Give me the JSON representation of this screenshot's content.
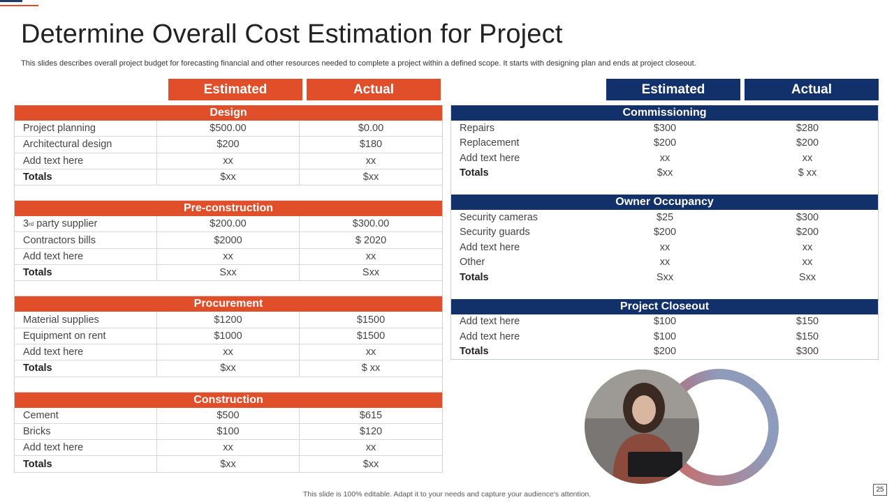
{
  "title": "Determine Overall Cost Estimation for Project",
  "subtitle": "This slides describes overall project budget for forecasting financial and other resources needed to complete a project within a defined scope. It starts with designing plan and ends at project closeout.",
  "left_headers": {
    "estimated": "Estimated",
    "actual": "Actual"
  },
  "right_headers": {
    "estimated": "Estimated",
    "actual": "Actual"
  },
  "left_sections": [
    {
      "title": "Design",
      "rows": [
        {
          "label": "Project planning",
          "estimated": "$500.00",
          "actual": "$0.00"
        },
        {
          "label": "Architectural design",
          "estimated": "$200",
          "actual": "$180"
        },
        {
          "label": "Add text here",
          "estimated": "xx",
          "actual": "xx"
        },
        {
          "label": "Totals",
          "estimated": "$xx",
          "actual": "$xx"
        }
      ]
    },
    {
      "title": "Pre-construction",
      "rows": [
        {
          "label_prefix": "3",
          "label_sup": "rd",
          "label": " party supplier",
          "estimated": "$200.00",
          "actual": "$300.00"
        },
        {
          "label": "Contractors bills",
          "estimated": "$2000",
          "actual": "$ 2020"
        },
        {
          "label": "Add text here",
          "estimated": "xx",
          "actual": "xx"
        },
        {
          "label": "Totals",
          "estimated": "Sxx",
          "actual": "Sxx"
        }
      ]
    },
    {
      "title": "Procurement",
      "rows": [
        {
          "label": "Material supplies",
          "estimated": "$1200",
          "actual": "$1500"
        },
        {
          "label": "Equipment on rent",
          "estimated": "$1000",
          "actual": "$1500"
        },
        {
          "label": "Add text here",
          "estimated": "xx",
          "actual": "xx"
        },
        {
          "label": "Totals",
          "estimated": "$xx",
          "actual": "$ xx"
        }
      ]
    },
    {
      "title": "Construction",
      "rows": [
        {
          "label": "Cement",
          "estimated": "$500",
          "actual": "$615"
        },
        {
          "label": "Bricks",
          "estimated": "$100",
          "actual": "$120"
        },
        {
          "label": "Add text here",
          "estimated": "xx",
          "actual": "xx"
        },
        {
          "label": "Totals",
          "estimated": "$xx",
          "actual": "$xx"
        }
      ]
    }
  ],
  "right_sections": [
    {
      "title": "Commissioning",
      "rows": [
        {
          "label": "Repairs",
          "estimated": "$300",
          "actual": "$280"
        },
        {
          "label": "Replacement",
          "estimated": "$200",
          "actual": "$200"
        },
        {
          "label": "Add text here",
          "estimated": "xx",
          "actual": "xx"
        },
        {
          "label": "Totals",
          "estimated": "$xx",
          "actual": "$ xx"
        }
      ]
    },
    {
      "title": "Owner Occupancy",
      "rows": [
        {
          "label": "Security cameras",
          "estimated": "$25",
          "actual": "$300"
        },
        {
          "label": "Security guards",
          "estimated": "$200",
          "actual": "$200"
        },
        {
          "label": "Add text here",
          "estimated": "xx",
          "actual": "xx"
        },
        {
          "label": "Other",
          "estimated": "xx",
          "actual": "xx"
        },
        {
          "label": "Totals",
          "estimated": "Sxx",
          "actual": "Sxx"
        }
      ]
    },
    {
      "title": "Project Closeout",
      "rows": [
        {
          "label": "Add text here",
          "estimated": "$100",
          "actual": "$150"
        },
        {
          "label": "Add text here",
          "estimated": "$100",
          "actual": "$150"
        },
        {
          "label": "Totals",
          "estimated": "$200",
          "actual": "$300"
        }
      ]
    }
  ],
  "footer": "This slide is 100% editable.  Adapt it to your needs and capture your audience's attention.",
  "page_number": "25",
  "colors": {
    "orange": "#e04e2a",
    "navy": "#12306a"
  }
}
